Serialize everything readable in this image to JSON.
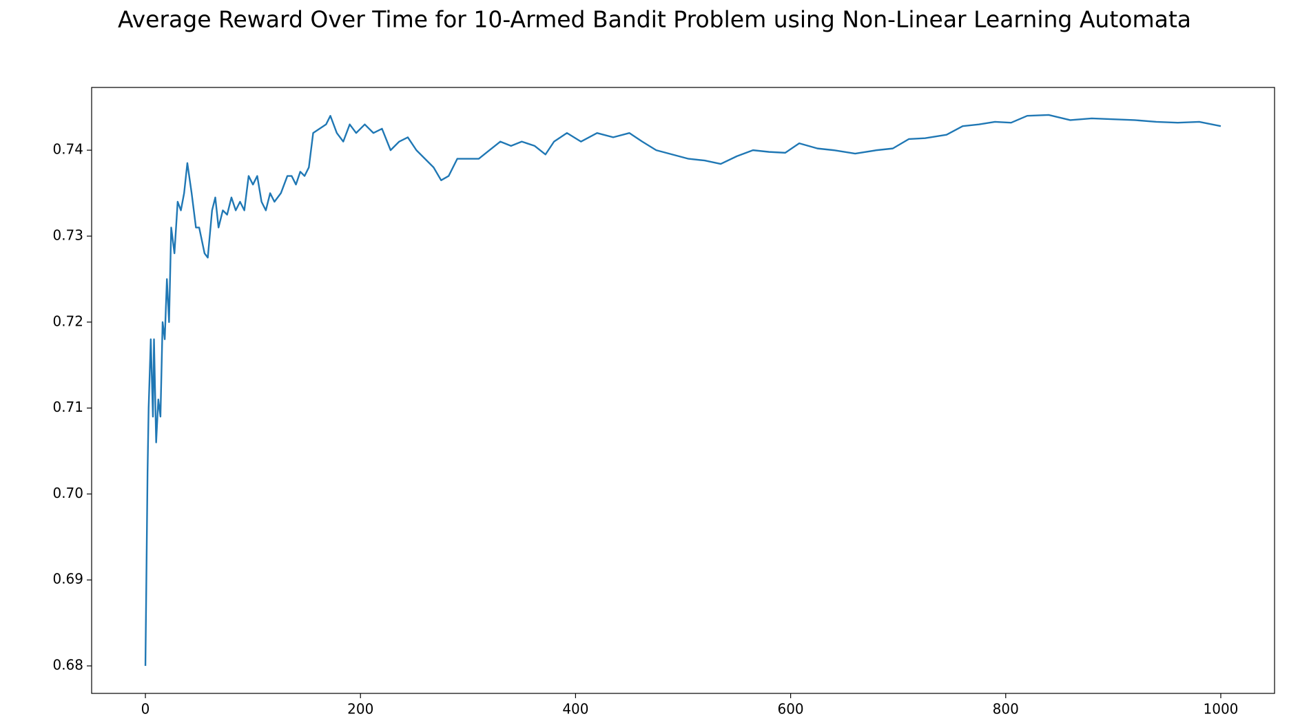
{
  "chart_data": {
    "type": "line",
    "title": "Average Reward Over Time for 10-Armed Bandit Problem using Non-Linear Learning Automata",
    "x": [
      0,
      2,
      3,
      5,
      7,
      8,
      10,
      12,
      14,
      16,
      18,
      20,
      22,
      24,
      27,
      30,
      33,
      36,
      39,
      43,
      47,
      50,
      55,
      58,
      62,
      65,
      68,
      72,
      76,
      80,
      84,
      88,
      92,
      96,
      100,
      104,
      108,
      112,
      116,
      120,
      126,
      132,
      136,
      140,
      144,
      148,
      152,
      156,
      162,
      168,
      172,
      178,
      184,
      190,
      196,
      204,
      212,
      220,
      228,
      236,
      244,
      252,
      260,
      268,
      275,
      282,
      290,
      300,
      310,
      320,
      330,
      340,
      350,
      362,
      372,
      380,
      392,
      405,
      420,
      435,
      450,
      462,
      475,
      490,
      505,
      520,
      535,
      550,
      565,
      580,
      595,
      608,
      625,
      640,
      660,
      680,
      695,
      710,
      725,
      745,
      760,
      775,
      790,
      805,
      820,
      840,
      860,
      880,
      900,
      920,
      940,
      960,
      980,
      1000
    ],
    "values": [
      0.68,
      0.7025,
      0.71,
      0.718,
      0.709,
      0.718,
      0.706,
      0.711,
      0.709,
      0.72,
      0.718,
      0.725,
      0.72,
      0.731,
      0.728,
      0.734,
      0.733,
      0.735,
      0.7385,
      0.735,
      0.731,
      0.731,
      0.728,
      0.7275,
      0.733,
      0.7345,
      0.731,
      0.733,
      0.7325,
      0.7345,
      0.733,
      0.734,
      0.733,
      0.737,
      0.736,
      0.737,
      0.734,
      0.733,
      0.735,
      0.734,
      0.735,
      0.737,
      0.737,
      0.736,
      0.7375,
      0.737,
      0.738,
      0.742,
      0.7425,
      0.743,
      0.744,
      0.742,
      0.741,
      0.743,
      0.742,
      0.743,
      0.742,
      0.7425,
      0.74,
      0.741,
      0.7415,
      0.74,
      0.739,
      0.738,
      0.7365,
      0.737,
      0.739,
      0.739,
      0.739,
      0.74,
      0.741,
      0.7405,
      0.741,
      0.7405,
      0.7395,
      0.741,
      0.742,
      0.741,
      0.742,
      0.7415,
      0.742,
      0.741,
      0.74,
      0.7395,
      0.739,
      0.7388,
      0.7384,
      0.7393,
      0.74,
      0.7398,
      0.7397,
      0.7408,
      0.7402,
      0.74,
      0.7396,
      0.74,
      0.7402,
      0.7413,
      0.7414,
      0.7418,
      0.7428,
      0.743,
      0.7433,
      0.7432,
      0.744,
      0.7441,
      0.7435,
      0.7437,
      0.7436,
      0.7435,
      0.7433,
      0.7432,
      0.7433,
      0.7428
    ],
    "color": "#1f77b4",
    "xlim": [
      -50,
      1050
    ],
    "xticks": [
      0,
      200,
      400,
      600,
      800,
      1000
    ],
    "ylim": [
      0.6768,
      0.7473
    ],
    "yticks": [
      0.68,
      0.69,
      {
        "value": 0.7,
        "label": "0.70"
      },
      0.71,
      0.72,
      0.73,
      0.74
    ],
    "grid": false
  }
}
